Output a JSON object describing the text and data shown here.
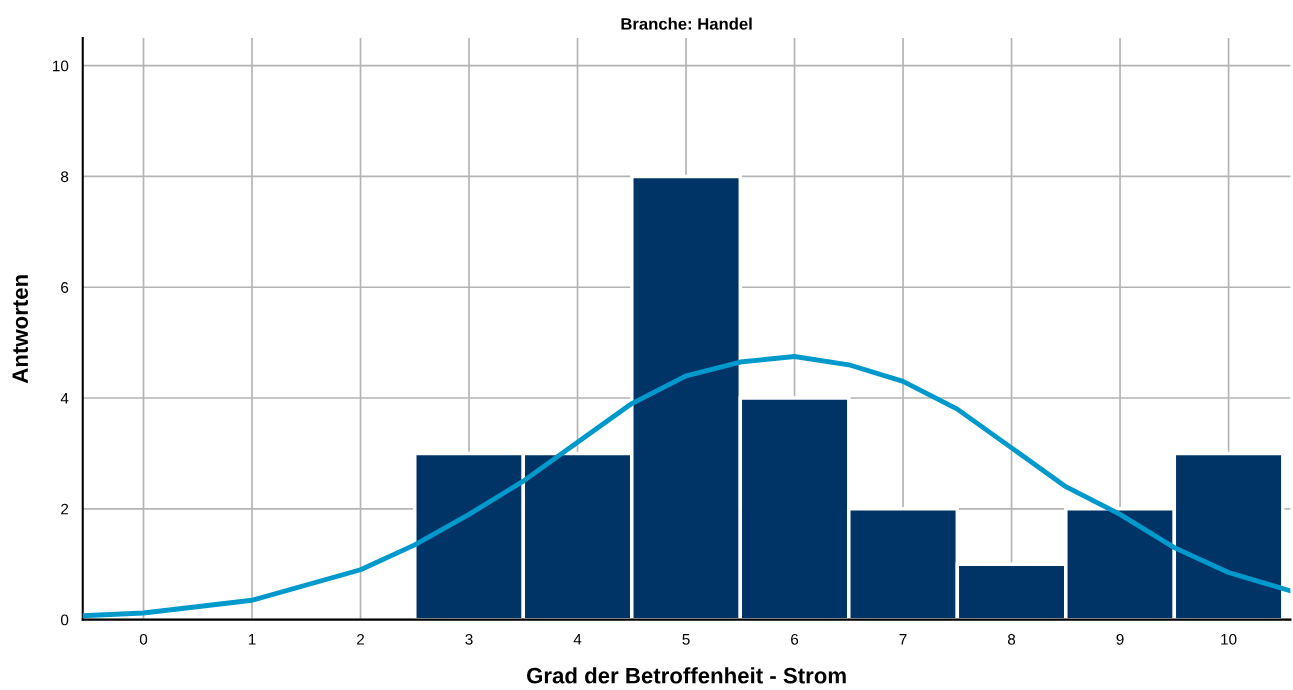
{
  "chart_data": {
    "type": "histogram",
    "title": "Branche: Handel",
    "xlabel": "Grad der Betroffenheit - Strom",
    "ylabel": "Antworten",
    "bins": [
      2.5,
      3.5,
      4.5,
      5.5,
      6.5,
      7.5,
      8.5,
      9.5,
      10.5
    ],
    "values": [
      3,
      3,
      8,
      4,
      2,
      1,
      2,
      3
    ],
    "color": "#003366",
    "series": [
      {
        "type": "line",
        "color": "#0099cc",
        "x": [
          -0.56,
          0,
          1,
          2,
          2.5,
          3,
          3.5,
          4,
          4.5,
          5,
          5.5,
          6,
          6.5,
          7,
          7.5,
          8,
          8.5,
          9,
          9.5,
          10,
          10.57
        ],
        "values": [
          0.07,
          0.12,
          0.35,
          0.9,
          1.35,
          1.9,
          2.5,
          3.2,
          3.9,
          4.4,
          4.65,
          4.75,
          4.6,
          4.3,
          3.8,
          3.1,
          2.4,
          1.9,
          1.3,
          0.85,
          0.52
        ]
      }
    ],
    "xlim": [
      -0.56,
      10.57
    ],
    "xticks": [
      0,
      1,
      2,
      3,
      4,
      5,
      6,
      7,
      8,
      9,
      10
    ],
    "ylim": [
      0,
      10.5
    ],
    "yticks": [
      0,
      2,
      4,
      6,
      8,
      10
    ],
    "grid": true
  }
}
